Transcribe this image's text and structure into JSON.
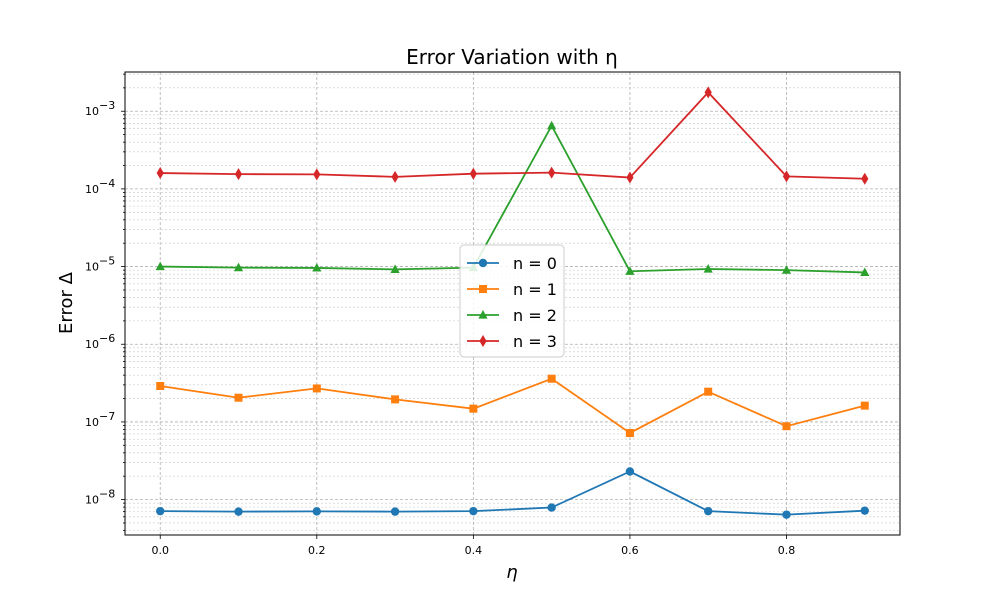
{
  "chart_data": {
    "type": "line",
    "title": "Error Variation with η",
    "xlabel": "η",
    "ylabel": "Error Δ",
    "yscale": "log",
    "xlim": [
      -0.045,
      0.945
    ],
    "ylim": [
      3.5e-09,
      0.0032
    ],
    "grid": true,
    "legend_position": "center",
    "x": [
      0.0,
      0.1,
      0.2,
      0.3,
      0.4,
      0.5,
      0.6,
      0.7,
      0.8,
      0.9
    ],
    "x_ticks": [
      "0.0",
      "0.2",
      "0.4",
      "0.6",
      "0.8"
    ],
    "y_ticks": [
      {
        "base": "10",
        "exp": "−8"
      },
      {
        "base": "10",
        "exp": "−7"
      },
      {
        "base": "10",
        "exp": "−6"
      },
      {
        "base": "10",
        "exp": "−5"
      },
      {
        "base": "10",
        "exp": "−4"
      },
      {
        "base": "10",
        "exp": "−3"
      }
    ],
    "series": [
      {
        "name": "n = 0",
        "color": "#1f77b4",
        "marker": "circle",
        "values": [
          7.1e-09,
          7e-09,
          7.05e-09,
          7e-09,
          7.1e-09,
          7.9e-09,
          2.3e-08,
          7.1e-09,
          6.4e-09,
          7.2e-09
        ]
      },
      {
        "name": "n = 1",
        "color": "#ff7f0e",
        "marker": "square",
        "values": [
          2.9e-07,
          2.05e-07,
          2.7e-07,
          1.95e-07,
          1.48e-07,
          3.6e-07,
          7.2e-08,
          2.45e-07,
          8.8e-08,
          1.62e-07
        ]
      },
      {
        "name": "n = 2",
        "color": "#2ca02c",
        "marker": "triangle",
        "values": [
          1e-05,
          9.7e-06,
          9.6e-06,
          9.2e-06,
          9.7e-06,
          0.00065,
          8.7e-06,
          9.3e-06,
          9e-06,
          8.4e-06
        ]
      },
      {
        "name": "n = 3",
        "color": "#d62728",
        "marker": "diamond",
        "values": [
          0.00016,
          0.000155,
          0.000154,
          0.000143,
          0.000157,
          0.000162,
          0.00014,
          0.00175,
          0.000145,
          0.000135
        ]
      }
    ]
  }
}
